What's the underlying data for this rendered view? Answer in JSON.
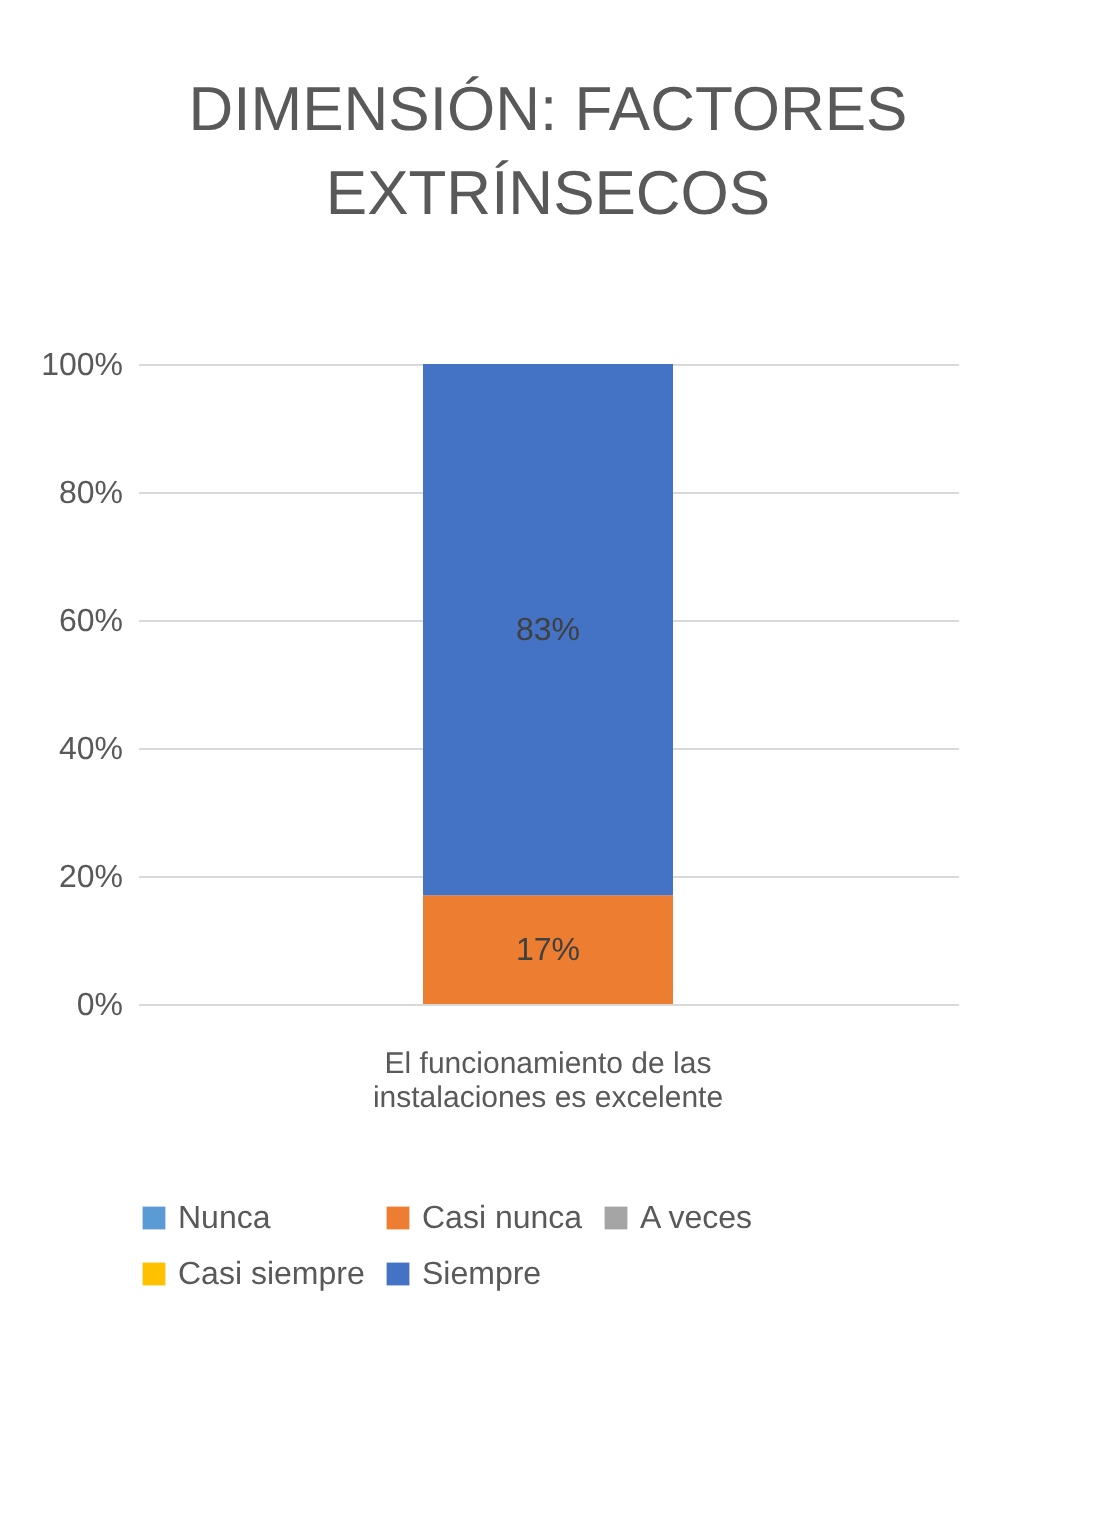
{
  "chart_data": {
    "type": "bar",
    "title": "DIMENSIÓN: FACTORES EXTRÍNSECOS",
    "categories": [
      "El funcionamiento de las instalaciones es excelente"
    ],
    "stacked": true,
    "series": [
      {
        "name": "Nunca",
        "color": "#5b9bd5",
        "values": [
          0
        ],
        "value_labels": [
          null
        ]
      },
      {
        "name": "Casi nunca",
        "color": "#ed7d31",
        "values": [
          17
        ],
        "value_labels": [
          "17%"
        ]
      },
      {
        "name": "A veces",
        "color": "#a5a5a5",
        "values": [
          0
        ],
        "value_labels": [
          null
        ]
      },
      {
        "name": "Casi siempre",
        "color": "#ffc000",
        "values": [
          0
        ],
        "value_labels": [
          null
        ]
      },
      {
        "name": "Siempre",
        "color": "#4472c4",
        "values": [
          83
        ],
        "value_labels": [
          "83%"
        ]
      }
    ],
    "ylim": [
      0,
      100
    ],
    "yticks": [
      {
        "value": 0,
        "label": "0%"
      },
      {
        "value": 20,
        "label": "20%"
      },
      {
        "value": 40,
        "label": "40%"
      },
      {
        "value": 60,
        "label": "60%"
      },
      {
        "value": 80,
        "label": "80%"
      },
      {
        "value": 100,
        "label": "100%"
      }
    ],
    "grid": "y",
    "legend": "bottom"
  }
}
